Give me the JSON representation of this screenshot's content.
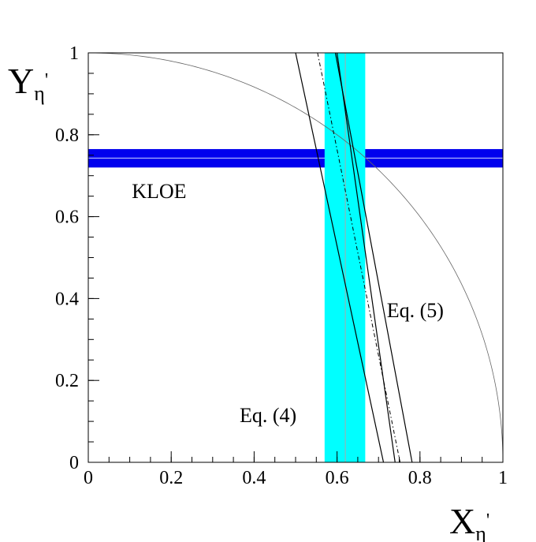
{
  "chart_data": {
    "type": "line",
    "title": "",
    "xlabel": {
      "main": "X",
      "sub": "η",
      "sup": "'"
    },
    "ylabel": {
      "main": "Y",
      "sub": "η",
      "sup": "'"
    },
    "xlim": [
      0,
      1
    ],
    "ylim": [
      0,
      1
    ],
    "x_ticks": [
      {
        "value": 0,
        "label": "0"
      },
      {
        "value": 0.2,
        "label": "0.2"
      },
      {
        "value": 0.4,
        "label": "0.4"
      },
      {
        "value": 0.6,
        "label": "0.6"
      },
      {
        "value": 0.8,
        "label": "0.8"
      },
      {
        "value": 1,
        "label": "1"
      }
    ],
    "y_ticks": [
      {
        "value": 0,
        "label": "0"
      },
      {
        "value": 0.2,
        "label": "0.2"
      },
      {
        "value": 0.4,
        "label": "0.4"
      },
      {
        "value": 0.6,
        "label": "0.6"
      },
      {
        "value": 0.8,
        "label": "0.8"
      },
      {
        "value": 1,
        "label": "1"
      }
    ],
    "minor_tick_step": 0.05,
    "grid": false,
    "bands": [
      {
        "orientation": "horizontal",
        "from": 0.72,
        "to": 0.765,
        "center": 0.743,
        "color": "#0000ee",
        "center_color": "#d0d8ff"
      },
      {
        "orientation": "vertical",
        "from": 0.57,
        "to": 0.668,
        "center": 0.62,
        "color": "#00ffff",
        "center_color": "#aaaaaa"
      }
    ],
    "series": [
      {
        "style": "solid",
        "color": "#666666",
        "width": 0.8,
        "function": "unit-circle",
        "points": [
          [
            0,
            1
          ],
          [
            0.2,
            0.98
          ],
          [
            0.4,
            0.917
          ],
          [
            0.6,
            0.8
          ],
          [
            0.7,
            0.714
          ],
          [
            0.8,
            0.6
          ],
          [
            0.9,
            0.436
          ],
          [
            0.95,
            0.312
          ],
          [
            1,
            0
          ]
        ]
      },
      {
        "style": "solid",
        "color": "#000000",
        "width": 1.2,
        "points": [
          [
            0.5,
            1
          ],
          [
            0.712,
            0
          ]
        ]
      },
      {
        "style": "dashdot",
        "color": "#000000",
        "width": 1.0,
        "points": [
          [
            0.553,
            1
          ],
          [
            0.752,
            0
          ]
        ]
      },
      {
        "style": "solid",
        "color": "#000000",
        "width": 1.2,
        "points": [
          [
            0.596,
            1
          ],
          [
            0.781,
            0
          ]
        ]
      },
      {
        "style": "solid",
        "color": "#000000",
        "width": 1.2,
        "points": [
          [
            0.6,
            1
          ],
          [
            0.74,
            0
          ]
        ]
      }
    ],
    "annotations": [
      {
        "text": "KLOE",
        "x": 0.105,
        "y": 0.645
      },
      {
        "text": "Eq. (5)",
        "x": 0.72,
        "y": 0.355
      },
      {
        "text": "Eq. (4)",
        "x": 0.365,
        "y": 0.098
      }
    ]
  }
}
